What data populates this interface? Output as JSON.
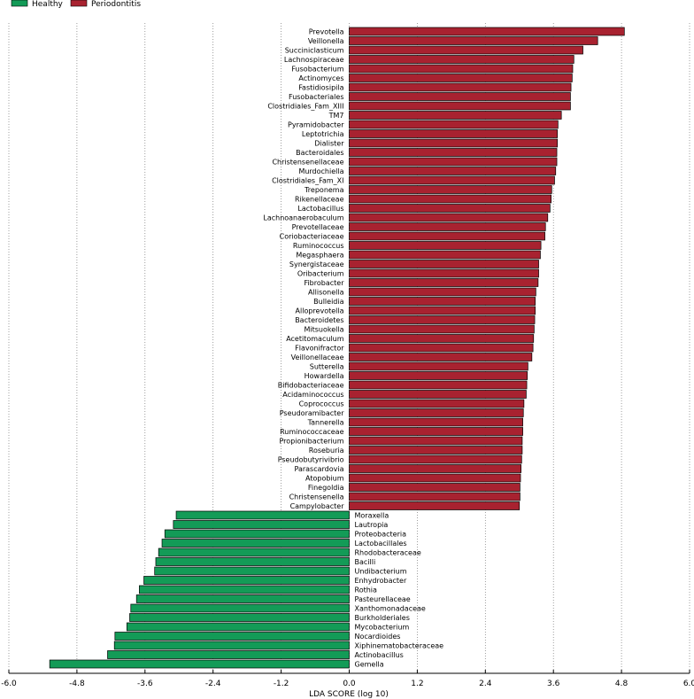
{
  "chart_data": {
    "type": "bar",
    "orientation": "horizontal",
    "xlabel": "LDA SCORE (log 10)",
    "xlim": [
      -6.0,
      6.0
    ],
    "xticks": [
      "-6.0",
      "-4.8",
      "-3.6",
      "-2.4",
      "-1.2",
      "0.0",
      "1.2",
      "2.4",
      "3.6",
      "4.8",
      "6.0"
    ],
    "grid": "vertical-dotted",
    "legend_position": "top-left",
    "legend": [
      {
        "name": "Healthy",
        "color": "#139B57"
      },
      {
        "name": "Periodontitis",
        "color": "#A82230"
      }
    ],
    "series": [
      {
        "name": "Periodontitis",
        "color": "#A82230",
        "categories": [
          "Prevotella",
          "Veillonella",
          "Succiniclasticum",
          "Lachnospiraceae",
          "Fusobacterium",
          "Actinomyces",
          "Fastidiosipila",
          "Fusobacteriales",
          "Clostridiales_Fam_XIII",
          "TM7",
          "Pyramidobacter",
          "Leptotrichia",
          "Dialister",
          "Bacteroidales",
          "Christensenellaceae",
          "Murdochiella",
          "Clostridiales_Fam_XI",
          "Treponema",
          "Rikenellaceae",
          "Lactobacillus",
          "Lachnoanaerobaculum",
          "Prevotellaceae",
          "Coriobacteriaceae",
          "Ruminococcus",
          "Megasphaera",
          "Synergistaceae",
          "Oribacterium",
          "Fibrobacter",
          "Allisonella",
          "Bulleidia",
          "Alloprevotella",
          "Bacteroidetes",
          "Mitsuokella",
          "Acetitomaculum",
          "Flavonifractor",
          "Veillonellaceae",
          "Sutterella",
          "Howardella",
          "Bifidobacteriaceae",
          "Acidaminococcus",
          "Coprococcus",
          "Pseudoramibacter",
          "Tannerella",
          "Ruminococcaceae",
          "Propionibacterium",
          "Roseburia",
          "Pseudobutyrivibrio",
          "Parascardovia",
          "Atopobium",
          "Finegoldia",
          "Christensenella",
          "Campylobacter"
        ],
        "values": [
          4.85,
          4.38,
          4.12,
          3.96,
          3.94,
          3.93,
          3.91,
          3.9,
          3.9,
          3.74,
          3.68,
          3.67,
          3.67,
          3.66,
          3.66,
          3.64,
          3.62,
          3.57,
          3.56,
          3.54,
          3.5,
          3.46,
          3.45,
          3.38,
          3.37,
          3.34,
          3.34,
          3.33,
          3.29,
          3.28,
          3.28,
          3.27,
          3.26,
          3.25,
          3.24,
          3.22,
          3.15,
          3.14,
          3.13,
          3.12,
          3.08,
          3.07,
          3.06,
          3.06,
          3.05,
          3.05,
          3.04,
          3.03,
          3.02,
          3.01,
          3.01,
          3.0
        ]
      },
      {
        "name": "Healthy",
        "color": "#139B57",
        "categories": [
          "Moraxella",
          "Lautropia",
          "Proteobacteria",
          "Lactobacillales",
          "Rhodobacteraceae",
          "Bacilli",
          "Undibacterium",
          "Enhydrobacter",
          "Rothia",
          "Pasteurellaceae",
          "Xanthomonadaceae",
          "Burkholderiales",
          "Mycobacterium",
          "Nocardioides",
          "Xiphinematobacteraceae",
          "Actinobacillus",
          "Gemella"
        ],
        "values": [
          -3.05,
          -3.1,
          -3.25,
          -3.3,
          -3.36,
          -3.41,
          -3.43,
          -3.62,
          -3.7,
          -3.75,
          -3.85,
          -3.87,
          -3.92,
          -4.13,
          -4.14,
          -4.26,
          -5.28
        ]
      }
    ]
  }
}
